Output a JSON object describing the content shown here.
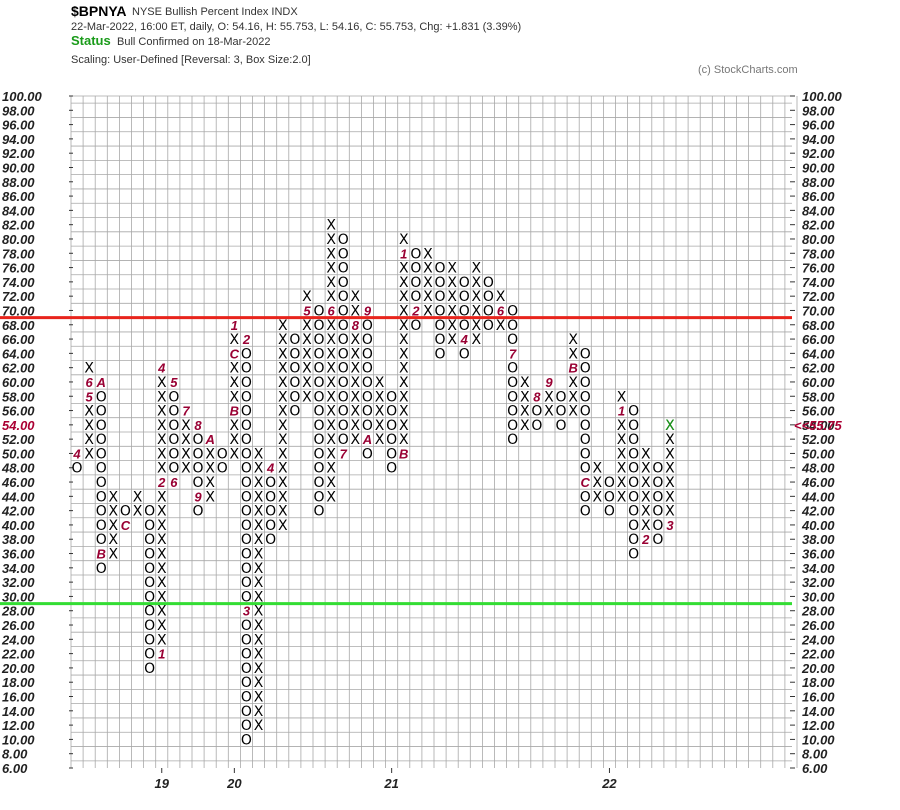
{
  "header": {
    "symbol": "$BPNYA",
    "name": "NYSE Bullish Percent Index  INDX",
    "ohlc": "22-Mar-2022, 16:00 ET, daily, O: 54.16, H: 55.753, L: 54.16, C: 55.753, Chg: +1.831 (3.39%)",
    "status_label": "Status",
    "status_text": "Bull Confirmed on 18-Mar-2022",
    "scaling": "Scaling: User-Defined [Reversal: 3, Box Size:2.0]",
    "copyright": "(c) StockCharts.com"
  },
  "colors": {
    "x_mark": "#000000",
    "o_mark": "#000000",
    "month_marker": "#990033",
    "current_marker": "#1a9b1a",
    "upper_line": "#e8241c",
    "lower_line": "#33dd33",
    "grid": "#a8a8a8",
    "last_price": "#aa0033"
  },
  "chart_data": {
    "type": "point-and-figure",
    "title": "$BPNYA",
    "box_size": 2,
    "reversal": 3,
    "ylim": [
      6,
      100
    ],
    "y_tick_labels": [
      "6.00",
      "8.00",
      "10.00",
      "12.00",
      "14.00",
      "16.00",
      "18.00",
      "20.00",
      "22.00",
      "24.00",
      "26.00",
      "28.00",
      "30.00",
      "32.00",
      "34.00",
      "36.00",
      "38.00",
      "40.00",
      "42.00",
      "44.00",
      "46.00",
      "48.00",
      "50.00",
      "52.00",
      "54.00",
      "56.00",
      "58.00",
      "60.00",
      "62.00",
      "64.00",
      "66.00",
      "68.00",
      "70.00",
      "72.00",
      "74.00",
      "76.00",
      "78.00",
      "80.00",
      "82.00",
      "84.00",
      "86.00",
      "88.00",
      "90.00",
      "92.00",
      "94.00",
      "96.00",
      "98.00",
      "100.00"
    ],
    "horizontal_lines": [
      {
        "value": 70,
        "color": "#e8241c"
      },
      {
        "value": 30,
        "color": "#33dd33"
      }
    ],
    "last_price_label": "<<55.75",
    "last_price_value": 54,
    "left_last_price_label": "54.00",
    "x_labels": [
      {
        "label": "19",
        "column": 7
      },
      {
        "label": "20",
        "column": 13
      },
      {
        "label": "21",
        "column": 26
      },
      {
        "label": "22",
        "column": 44
      }
    ],
    "columns": [
      {
        "type": "O",
        "high": 50,
        "low": 48,
        "marks": [
          {
            "value": 50,
            "label": "4"
          }
        ]
      },
      {
        "type": "X",
        "high": 62,
        "low": 50,
        "marks": [
          {
            "value": 58,
            "label": "5"
          },
          {
            "value": 60,
            "label": "6"
          }
        ]
      },
      {
        "type": "O",
        "high": 60,
        "low": 34,
        "marks": [
          {
            "value": 60,
            "label": "A"
          },
          {
            "value": 36,
            "label": "B"
          }
        ]
      },
      {
        "type": "X",
        "high": 44,
        "low": 36,
        "marks": []
      },
      {
        "type": "O",
        "high": 42,
        "low": 40,
        "marks": [
          {
            "value": 40,
            "label": "C"
          }
        ]
      },
      {
        "type": "X",
        "high": 44,
        "low": 42,
        "marks": []
      },
      {
        "type": "O",
        "high": 42,
        "low": 20,
        "marks": []
      },
      {
        "type": "X",
        "high": 62,
        "low": 22,
        "marks": [
          {
            "value": 22,
            "label": "1"
          },
          {
            "value": 46,
            "label": "2"
          },
          {
            "value": 62,
            "label": "4"
          }
        ]
      },
      {
        "type": "O",
        "high": 60,
        "low": 46,
        "marks": [
          {
            "value": 46,
            "label": "6"
          },
          {
            "value": 60,
            "label": "5"
          }
        ]
      },
      {
        "type": "X",
        "high": 56,
        "low": 48,
        "marks": [
          {
            "value": 56,
            "label": "7"
          }
        ]
      },
      {
        "type": "O",
        "high": 54,
        "low": 42,
        "marks": [
          {
            "value": 54,
            "label": "8"
          },
          {
            "value": 44,
            "label": "9"
          }
        ]
      },
      {
        "type": "X",
        "high": 52,
        "low": 44,
        "marks": [
          {
            "value": 52,
            "label": "A"
          }
        ]
      },
      {
        "type": "O",
        "high": 50,
        "low": 48,
        "marks": []
      },
      {
        "type": "X",
        "high": 68,
        "low": 50,
        "marks": [
          {
            "value": 56,
            "label": "B"
          },
          {
            "value": 64,
            "label": "C"
          },
          {
            "value": 68,
            "label": "1"
          }
        ]
      },
      {
        "type": "O",
        "high": 66,
        "low": 10,
        "marks": [
          {
            "value": 66,
            "label": "2"
          },
          {
            "value": 28,
            "label": "3"
          }
        ]
      },
      {
        "type": "X",
        "high": 50,
        "low": 12,
        "marks": []
      },
      {
        "type": "O",
        "high": 48,
        "low": 38,
        "marks": [
          {
            "value": 48,
            "label": "4"
          }
        ]
      },
      {
        "type": "X",
        "high": 68,
        "low": 40,
        "marks": []
      },
      {
        "type": "O",
        "high": 66,
        "low": 56,
        "marks": []
      },
      {
        "type": "X",
        "high": 72,
        "low": 58,
        "marks": [
          {
            "value": 70,
            "label": "5"
          }
        ]
      },
      {
        "type": "O",
        "high": 70,
        "low": 42,
        "marks": []
      },
      {
        "type": "X",
        "high": 82,
        "low": 44,
        "marks": [
          {
            "value": 70,
            "label": "6"
          }
        ]
      },
      {
        "type": "O",
        "high": 80,
        "low": 50,
        "marks": [
          {
            "value": 50,
            "label": "7"
          }
        ]
      },
      {
        "type": "X",
        "high": 72,
        "low": 52,
        "marks": [
          {
            "value": 68,
            "label": "8"
          }
        ]
      },
      {
        "type": "O",
        "high": 70,
        "low": 50,
        "marks": [
          {
            "value": 70,
            "label": "9"
          },
          {
            "value": 52,
            "label": "A"
          }
        ]
      },
      {
        "type": "X",
        "high": 60,
        "low": 52,
        "marks": []
      },
      {
        "type": "O",
        "high": 58,
        "low": 48,
        "marks": []
      },
      {
        "type": "X",
        "high": 80,
        "low": 50,
        "marks": [
          {
            "value": 50,
            "label": "B"
          },
          {
            "value": 78,
            "label": "1"
          }
        ]
      },
      {
        "type": "O",
        "high": 78,
        "low": 68,
        "marks": [
          {
            "value": 70,
            "label": "2"
          }
        ]
      },
      {
        "type": "X",
        "high": 78,
        "low": 70,
        "marks": [
          {
            "value": 68,
            "label": "3"
          }
        ]
      },
      {
        "type": "O",
        "high": 76,
        "low": 64,
        "marks": []
      },
      {
        "type": "X",
        "high": 76,
        "low": 66,
        "marks": []
      },
      {
        "type": "O",
        "high": 74,
        "low": 64,
        "marks": [
          {
            "value": 66,
            "label": "4"
          }
        ]
      },
      {
        "type": "X",
        "high": 76,
        "low": 66,
        "marks": []
      },
      {
        "type": "O",
        "high": 74,
        "low": 68,
        "marks": []
      },
      {
        "type": "X",
        "high": 72,
        "low": 68,
        "marks": [
          {
            "value": 74,
            "label": "5"
          },
          {
            "value": 70,
            "label": "6"
          }
        ]
      },
      {
        "type": "O",
        "high": 70,
        "low": 52,
        "marks": [
          {
            "value": 64,
            "label": "7"
          }
        ]
      },
      {
        "type": "X",
        "high": 60,
        "low": 54,
        "marks": []
      },
      {
        "type": "O",
        "high": 58,
        "low": 54,
        "marks": [
          {
            "value": 58,
            "label": "8"
          }
        ]
      },
      {
        "type": "X",
        "high": 60,
        "low": 56,
        "marks": [
          {
            "value": 60,
            "label": "9"
          }
        ]
      },
      {
        "type": "O",
        "high": 58,
        "low": 54,
        "marks": []
      },
      {
        "type": "X",
        "high": 66,
        "low": 56,
        "marks": [
          {
            "value": 62,
            "label": "B"
          },
          {
            "value": 54,
            "label": "A"
          }
        ]
      },
      {
        "type": "O",
        "high": 64,
        "low": 42,
        "marks": [
          {
            "value": 46,
            "label": "C"
          }
        ]
      },
      {
        "type": "X",
        "high": 48,
        "low": 44,
        "marks": []
      },
      {
        "type": "O",
        "high": 46,
        "low": 42,
        "marks": []
      },
      {
        "type": "X",
        "high": 58,
        "low": 44,
        "marks": [
          {
            "value": 56,
            "label": "1"
          }
        ]
      },
      {
        "type": "O",
        "high": 56,
        "low": 36,
        "marks": []
      },
      {
        "type": "X",
        "high": 50,
        "low": 38,
        "marks": [
          {
            "value": 38,
            "label": "2"
          }
        ]
      },
      {
        "type": "O",
        "high": 48,
        "low": 38,
        "marks": []
      },
      {
        "type": "X",
        "high": 54,
        "low": 40,
        "marks": [
          {
            "value": 40,
            "label": "3"
          }
        ],
        "current": 54
      }
    ]
  }
}
